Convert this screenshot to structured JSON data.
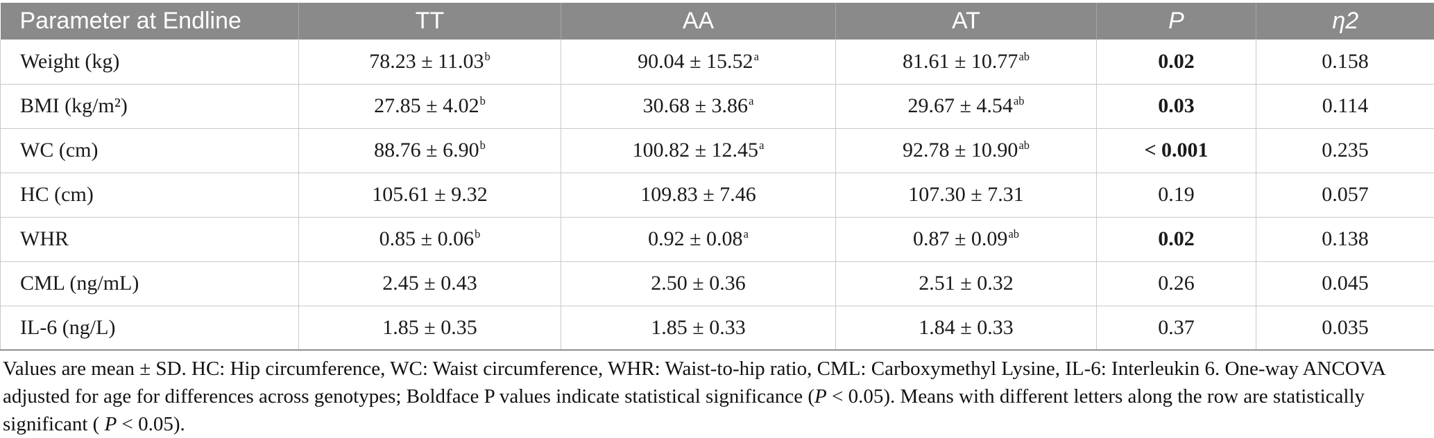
{
  "colors": {
    "header_bg": "#8a8a8a",
    "header_text": "#ffffff",
    "body_text": "#1a1a1a",
    "border_inner": "#c9c9c9",
    "border_header_sep": "#a6a6a6",
    "border_bottom": "#8f8f8f",
    "page_bg": "#ffffff"
  },
  "table": {
    "columns": [
      {
        "label": "Parameter at Endline",
        "italic": false
      },
      {
        "label": "TT",
        "italic": false
      },
      {
        "label": "AA",
        "italic": false
      },
      {
        "label": "AT",
        "italic": false
      },
      {
        "label": "P",
        "italic": true
      },
      {
        "label": "η2",
        "italic": true
      }
    ],
    "rows": [
      {
        "param": "Weight (kg)",
        "tt": {
          "text": "78.23 ± 11.03",
          "sup": "b"
        },
        "aa": {
          "text": "90.04 ± 15.52",
          "sup": "a"
        },
        "at": {
          "text": "81.61 ± 10.77",
          "sup": "ab"
        },
        "p": {
          "text": "0.02",
          "bold": true
        },
        "eta2": "0.158"
      },
      {
        "param": "BMI (kg/m²)",
        "tt": {
          "text": "27.85 ± 4.02",
          "sup": "b"
        },
        "aa": {
          "text": "30.68 ± 3.86",
          "sup": "a"
        },
        "at": {
          "text": "29.67 ± 4.54",
          "sup": "ab"
        },
        "p": {
          "text": "0.03",
          "bold": true
        },
        "eta2": "0.114"
      },
      {
        "param": "WC (cm)",
        "tt": {
          "text": "88.76 ± 6.90",
          "sup": "b"
        },
        "aa": {
          "text": "100.82 ± 12.45",
          "sup": "a"
        },
        "at": {
          "text": "92.78 ± 10.90",
          "sup": "ab"
        },
        "p": {
          "text": "< 0.001",
          "bold": true
        },
        "eta2": "0.235"
      },
      {
        "param": "HC (cm)",
        "tt": {
          "text": "105.61 ± 9.32",
          "sup": ""
        },
        "aa": {
          "text": "109.83 ± 7.46",
          "sup": ""
        },
        "at": {
          "text": "107.30 ± 7.31",
          "sup": ""
        },
        "p": {
          "text": "0.19",
          "bold": false
        },
        "eta2": "0.057"
      },
      {
        "param": "WHR",
        "tt": {
          "text": "0.85 ± 0.06",
          "sup": "b"
        },
        "aa": {
          "text": "0.92 ± 0.08",
          "sup": "a"
        },
        "at": {
          "text": "0.87 ± 0.09",
          "sup": "ab"
        },
        "p": {
          "text": "0.02",
          "bold": true
        },
        "eta2": "0.138"
      },
      {
        "param": "CML (ng/mL)",
        "tt": {
          "text": "2.45 ± 0.43",
          "sup": ""
        },
        "aa": {
          "text": "2.50 ± 0.36",
          "sup": ""
        },
        "at": {
          "text": "2.51 ± 0.32",
          "sup": ""
        },
        "p": {
          "text": "0.26",
          "bold": false
        },
        "eta2": "0.045"
      },
      {
        "param": "IL-6 (ng/L)",
        "tt": {
          "text": "1.85 ± 0.35",
          "sup": ""
        },
        "aa": {
          "text": "1.85 ± 0.33",
          "sup": ""
        },
        "at": {
          "text": "1.84 ± 0.33",
          "sup": ""
        },
        "p": {
          "text": "0.37",
          "bold": false
        },
        "eta2": "0.035"
      }
    ]
  },
  "footnote": {
    "segments": [
      {
        "text": "Values are mean ± SD. HC: Hip circumference, WC: Waist circumference, WHR: Waist-to-hip ratio, CML: Carboxymethyl Lysine, IL-6: Interleukin 6. One-way ANCOVA adjusted for age for differences across genotypes; Boldface P values indicate statistical significance (",
        "italic": false
      },
      {
        "text": "P",
        "italic": true
      },
      {
        "text": " < 0.05). Means with different letters along the row are statistically significant ( ",
        "italic": false
      },
      {
        "text": "P",
        "italic": true
      },
      {
        "text": " < 0.05).",
        "italic": false
      }
    ]
  }
}
